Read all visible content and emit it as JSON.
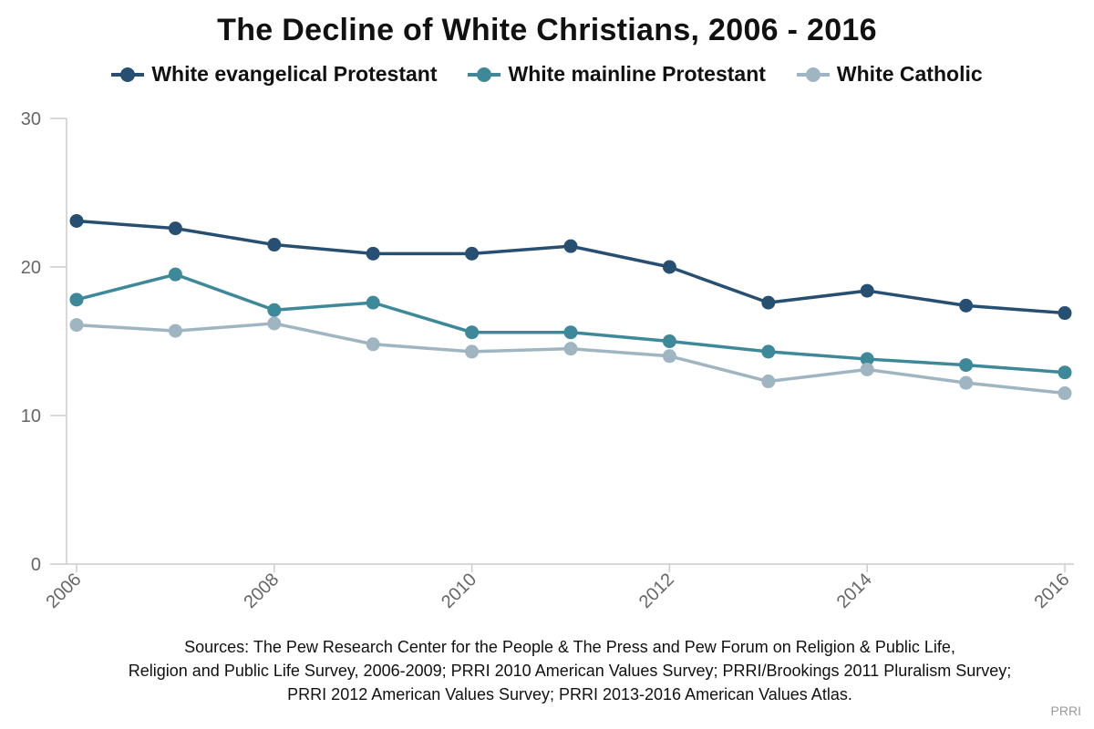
{
  "chart_data": {
    "type": "line",
    "title": "The Decline of White Christians, 2006 - 2016",
    "xlabel": "",
    "ylabel": "",
    "x": [
      2006,
      2007,
      2008,
      2009,
      2010,
      2011,
      2012,
      2013,
      2014,
      2015,
      2016
    ],
    "x_tick_labels": [
      "2006",
      "2008",
      "2010",
      "2012",
      "2014",
      "2016"
    ],
    "y_tick_labels": [
      "0",
      "10",
      "20",
      "30"
    ],
    "xlim": [
      2006,
      2016
    ],
    "ylim": [
      0,
      30
    ],
    "grid": false,
    "legend_position": "top",
    "series": [
      {
        "name": "White evangelical Protestant",
        "color": "#274f72",
        "values": [
          23.1,
          22.6,
          21.5,
          20.9,
          20.9,
          21.4,
          20.0,
          17.6,
          18.4,
          17.4,
          16.9
        ]
      },
      {
        "name": "White mainline Protestant",
        "color": "#3d8899",
        "values": [
          17.8,
          19.5,
          17.1,
          17.6,
          15.6,
          15.6,
          15.0,
          14.3,
          13.8,
          13.4,
          12.9
        ]
      },
      {
        "name": "White Catholic",
        "color": "#9fb5c2",
        "values": [
          16.1,
          15.7,
          16.2,
          14.8,
          14.3,
          14.5,
          14.0,
          12.3,
          13.1,
          12.2,
          11.5
        ]
      }
    ]
  },
  "sources": [
    "Sources: The Pew Research Center for the People & The Press and Pew Forum on Religion & Public Life,",
    "Religion and Public Life Survey, 2006-2009; PRRI 2010 American Values Survey; PRRI/Brookings 2011 Pluralism Survey;",
    "PRRI 2012 American Values Survey; PRRI 2013-2016 American Values Atlas."
  ],
  "credit": "PRRI",
  "colors": {
    "axis": "#cccccc",
    "tick_text": "#666666"
  }
}
